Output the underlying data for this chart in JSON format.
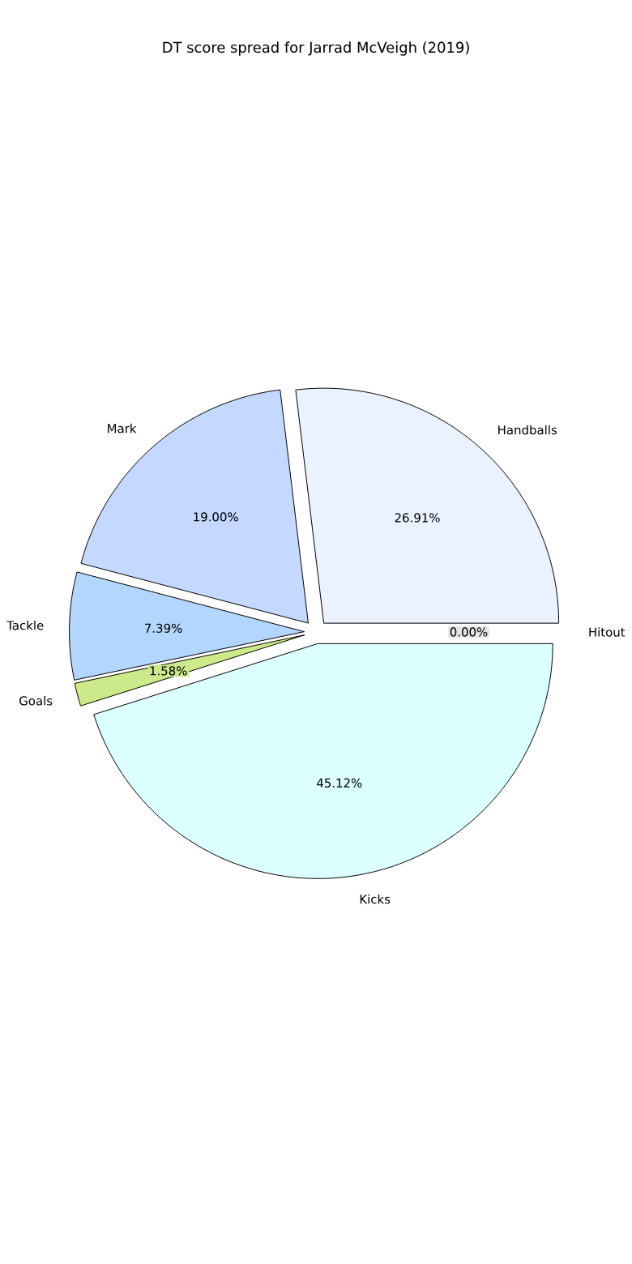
{
  "chart_data": {
    "type": "pie",
    "title": "DT score spread for Jarrad McVeigh (2019)",
    "categories": [
      "Handballs",
      "Mark",
      "Tackle",
      "Goals",
      "Kicks",
      "Hitout"
    ],
    "values": [
      26.91,
      19.0,
      7.39,
      1.58,
      45.12,
      0.0
    ],
    "colors": [
      "#eaf1ff",
      "#c5d8ff",
      "#b3d6ff",
      "#cdea8a",
      "#dcffff",
      "#e6e6e6"
    ],
    "value_labels": [
      "26.91%",
      "19.00%",
      "7.39%",
      "1.58%",
      "45.12%",
      "0.00%"
    ]
  }
}
